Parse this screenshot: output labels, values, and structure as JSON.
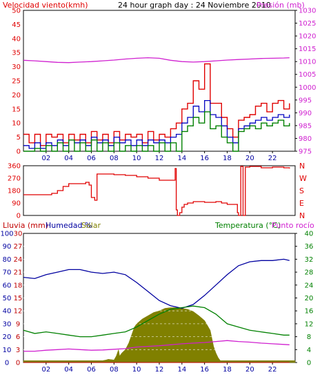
{
  "title": "24 hour graph day : 24 Noviembre 2010",
  "colors": {
    "wind": "#e00000",
    "gust": "#e00000",
    "avg": "#0000c0",
    "green": "#008000",
    "pressure": "#d020d0",
    "humidity": "#0000a0",
    "temperature": "#008000",
    "dewpoint": "#d020d0",
    "solar": "#808000",
    "rain": "#c00000",
    "grid": "#000000"
  },
  "panel1": {
    "left_label": "Velocidad viento(kmh)",
    "right_label": "Presión (mb)"
  },
  "panel2": {
    "compass": [
      "N",
      "W",
      "S",
      "E",
      "N"
    ]
  },
  "panel3": {
    "rain_label": "Lluvia (mm)",
    "humidity_label": "Humedad %",
    "solar_label": "Solar",
    "temp_label": "Temperatura (°C)",
    "dew_label": "Punto rocío"
  },
  "chart_data": [
    {
      "type": "line",
      "title": "24 hour graph day : 24 Noviembre 2010",
      "x_ticks": [
        "02",
        "04",
        "06",
        "08",
        "10",
        "12",
        "14",
        "16",
        "18",
        "20",
        "22"
      ],
      "xlabel": "",
      "ylabel": "Velocidad viento(kmh)",
      "ylim": [
        0,
        50
      ],
      "y_ticks": [
        0,
        5,
        10,
        15,
        20,
        25,
        30,
        35,
        40,
        45,
        50
      ],
      "y2label": "Presión (mb)",
      "y2lim": [
        975,
        1030
      ],
      "y2_ticks": [
        975,
        980,
        985,
        990,
        995,
        1000,
        1005,
        1010,
        1015,
        1020,
        1025,
        1030
      ],
      "grid": true,
      "series": [
        {
          "name": "Presión (mb)",
          "axis": "right",
          "x": [
            0,
            1,
            2,
            3,
            4,
            5,
            6,
            7,
            8,
            9,
            10,
            11,
            12,
            13,
            14,
            15,
            16,
            17,
            18,
            19,
            20,
            21,
            22,
            23,
            23.5
          ],
          "values": [
            1010.5,
            1010.3,
            1010,
            1009.7,
            1009.6,
            1009.8,
            1010,
            1010.3,
            1010.6,
            1011,
            1011.3,
            1011.5,
            1011.3,
            1010.5,
            1010,
            1009.8,
            1010,
            1010.3,
            1010.6,
            1010.8,
            1011,
            1011.2,
            1011.3,
            1011.4,
            1011.5
          ]
        },
        {
          "name": "gust",
          "axis": "left",
          "x": [
            0,
            0.5,
            1,
            1.5,
            2,
            2.5,
            3,
            3.5,
            4,
            4.5,
            5,
            5.5,
            6,
            6.5,
            7,
            7.5,
            8,
            8.5,
            9,
            9.5,
            10,
            10.5,
            11,
            11.5,
            12,
            12.5,
            13,
            13.5,
            14,
            14.5,
            15,
            15.5,
            16,
            16.5,
            17,
            17.5,
            18,
            18.5,
            19,
            19.5,
            20,
            20.5,
            21,
            21.5,
            22,
            22.5,
            23,
            23.5
          ],
          "values": [
            6,
            3,
            6,
            2,
            6,
            5,
            6,
            3,
            6,
            4,
            6,
            3,
            7,
            4,
            6,
            3,
            7,
            4,
            6,
            5,
            6,
            3,
            7,
            4,
            6,
            5,
            8,
            10,
            15,
            17,
            25,
            22,
            31,
            17,
            17,
            12,
            8,
            5,
            11,
            12,
            13,
            16,
            17,
            14,
            17,
            18,
            15,
            17
          ]
        },
        {
          "name": "avg",
          "axis": "left",
          "x": [
            0,
            0.5,
            1,
            1.5,
            2,
            2.5,
            3,
            3.5,
            4,
            4.5,
            5,
            5.5,
            6,
            6.5,
            7,
            7.5,
            8,
            8.5,
            9,
            9.5,
            10,
            10.5,
            11,
            11.5,
            12,
            12.5,
            13,
            13.5,
            14,
            14.5,
            15,
            15.5,
            16,
            16.5,
            17,
            17.5,
            18,
            18.5,
            19,
            19.5,
            20,
            20.5,
            21,
            21.5,
            22,
            22.5,
            23,
            23.5
          ],
          "values": [
            2,
            1,
            3,
            1,
            3,
            2,
            4,
            2,
            4,
            3,
            4,
            2,
            5,
            3,
            4,
            2,
            5,
            3,
            4,
            2,
            4,
            2,
            4,
            3,
            4,
            3,
            5,
            6,
            10,
            12,
            16,
            14,
            18,
            13,
            12,
            9,
            5,
            3,
            8,
            9,
            10,
            11,
            12,
            11,
            12,
            13,
            12,
            13
          ]
        },
        {
          "name": "green",
          "axis": "left",
          "x": [
            0,
            0.5,
            1,
            1.5,
            2,
            2.5,
            3,
            3.5,
            4,
            4.5,
            5,
            5.5,
            6,
            6.5,
            7,
            7.5,
            8,
            8.5,
            9,
            9.5,
            10,
            10.5,
            11,
            11.5,
            12,
            12.5,
            13,
            13.5,
            14,
            14.5,
            15,
            15.5,
            16,
            16.5,
            17,
            17.5,
            18,
            18.5,
            19,
            19.5,
            20,
            20.5,
            21,
            21.5,
            22,
            22.5,
            23,
            23.5
          ],
          "values": [
            0,
            0,
            1,
            0,
            2,
            0,
            3,
            0,
            4,
            0,
            3,
            0,
            4,
            0,
            3,
            0,
            3,
            0,
            2,
            0,
            2,
            0,
            2,
            0,
            3,
            0,
            3,
            0,
            7,
            9,
            12,
            10,
            14,
            8,
            9,
            5,
            3,
            0,
            7,
            8,
            9,
            8,
            10,
            9,
            10,
            11,
            9,
            10
          ]
        }
      ]
    },
    {
      "type": "line",
      "title": "",
      "ylabel": "",
      "ylim": [
        0,
        360
      ],
      "y_ticks": [
        0,
        90,
        180,
        270,
        360
      ],
      "x_ticks": [],
      "series": [
        {
          "name": "direction",
          "x": [
            0,
            1.5,
            2.5,
            3,
            3.5,
            4,
            5.5,
            5.8,
            6,
            6.3,
            6.5,
            7,
            8,
            9,
            10,
            11,
            12,
            13,
            13.4,
            13.5,
            13.6,
            13.8,
            14,
            14.2,
            14.5,
            15,
            16,
            17,
            17.5,
            18,
            18.7,
            18.9,
            19,
            19.2,
            19.4,
            19.6,
            20,
            21,
            22,
            23,
            23.5
          ],
          "values": [
            150,
            150,
            160,
            180,
            210,
            230,
            240,
            220,
            130,
            110,
            300,
            300,
            295,
            290,
            280,
            270,
            255,
            255,
            340,
            40,
            0,
            20,
            60,
            80,
            90,
            100,
            95,
            100,
            90,
            80,
            80,
            20,
            0,
            355,
            0,
            350,
            355,
            345,
            350,
            345,
            340
          ]
        }
      ]
    },
    {
      "type": "line",
      "title": "",
      "x_ticks": [
        "02",
        "04",
        "06",
        "08",
        "10",
        "12",
        "14",
        "16",
        "18",
        "20",
        "22"
      ],
      "ylabel": "Humedad %",
      "ylim": [
        0,
        100
      ],
      "y_ticks": [
        0,
        10,
        20,
        30,
        40,
        50,
        60,
        70,
        80,
        90,
        100
      ],
      "rain_ticks": [
        0,
        3,
        6,
        9,
        12,
        15,
        18,
        21,
        24,
        27,
        30
      ],
      "y2label": "Temperatura (°C)",
      "y2lim": [
        0,
        40
      ],
      "y2_ticks": [
        0,
        4,
        8,
        12,
        16,
        20,
        24,
        28,
        32,
        36,
        40
      ],
      "grid": true,
      "series": [
        {
          "name": "Humedad %",
          "axis": "left",
          "x": [
            0,
            1,
            2,
            3,
            4,
            5,
            6,
            7,
            8,
            9,
            10,
            11,
            12,
            13,
            14,
            15,
            16,
            17,
            18,
            19,
            20,
            21,
            22,
            23,
            23.5
          ],
          "values": [
            66,
            65,
            68,
            70,
            72,
            72,
            70,
            69,
            70,
            68,
            62,
            55,
            48,
            44,
            42,
            45,
            52,
            60,
            68,
            75,
            78,
            79,
            79,
            80,
            79
          ]
        },
        {
          "name": "Temperatura (°C)",
          "axis": "right",
          "x": [
            0,
            1,
            2,
            3,
            4,
            5,
            6,
            7,
            8,
            9,
            10,
            11,
            12,
            13,
            14,
            15,
            16,
            17,
            18,
            19,
            20,
            21,
            22,
            23,
            23.5
          ],
          "values": [
            10,
            9,
            9.5,
            9,
            8.5,
            8,
            8,
            8.5,
            9,
            9.5,
            11,
            13,
            15,
            16.5,
            17,
            17.5,
            17,
            15,
            12,
            11,
            10,
            9.5,
            9,
            8.5,
            8.5
          ]
        },
        {
          "name": "Punto rocío",
          "axis": "right",
          "x": [
            0,
            1,
            2,
            3,
            4,
            5,
            6,
            7,
            8,
            9,
            10,
            11,
            12,
            13,
            14,
            15,
            16,
            17,
            18,
            19,
            20,
            21,
            22,
            23,
            23.5
          ],
          "values": [
            3.5,
            3.5,
            3.8,
            4,
            4.2,
            4,
            3.8,
            3.9,
            4.1,
            4.3,
            4.8,
            5,
            5.2,
            5.5,
            5.8,
            6,
            6.2,
            6.5,
            6.8,
            6.5,
            6.3,
            6,
            5.8,
            5.6,
            5.5
          ]
        },
        {
          "name": "Solar",
          "axis": "right",
          "x": [
            0,
            7,
            7.3,
            7.5,
            8,
            8.2,
            8.4,
            8.5,
            8.7,
            9,
            9.3,
            9.5,
            9.8,
            10,
            10.5,
            11,
            11.5,
            12,
            12.5,
            13,
            13.5,
            14,
            14.5,
            15,
            15.5,
            16,
            16.5,
            16.8,
            17,
            17.2,
            17.4,
            17.5,
            24
          ],
          "values": [
            0.6,
            0.6,
            0.8,
            1,
            0.8,
            2,
            4,
            2,
            3,
            4,
            6,
            8,
            11,
            12,
            13.5,
            14.5,
            15.5,
            16,
            16.8,
            17,
            17,
            16.8,
            16.5,
            15.8,
            14.5,
            13,
            10,
            5,
            3,
            1.5,
            0.6,
            0.6,
            0.6
          ]
        },
        {
          "name": "Lluvia (mm)",
          "axis": "rain",
          "x": [
            0,
            23.5
          ],
          "values": [
            0,
            0
          ]
        }
      ]
    }
  ]
}
